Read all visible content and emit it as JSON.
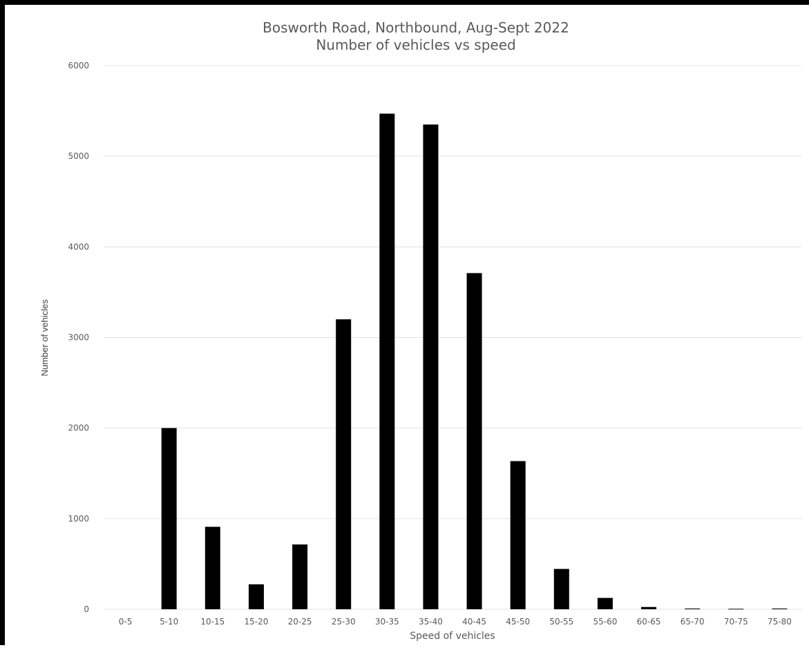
{
  "chart_data": {
    "type": "bar",
    "title_lines": [
      "Bosworth Road, Northbound, Aug-Sept 2022",
      "Number of vehicles vs speed"
    ],
    "xlabel": "Speed of vehicles",
    "ylabel": "Number of vehicles",
    "categories": [
      "0-5",
      "5-10",
      "10-15",
      "15-20",
      "20-25",
      "25-30",
      "30-35",
      "35-40",
      "40-45",
      "45-50",
      "50-55",
      "55-60",
      "60-65",
      "65-70",
      "70-75",
      "75-80"
    ],
    "values": [
      0,
      2000,
      910,
      275,
      715,
      3200,
      5470,
      5350,
      3710,
      1635,
      445,
      125,
      25,
      8,
      5,
      8
    ],
    "y_ticks": [
      "0",
      "1000",
      "2000",
      "3000",
      "4000",
      "5000",
      "6000"
    ],
    "ylim": [
      0,
      6000
    ],
    "grid": true,
    "legend": "none",
    "bar_color": "#000000"
  }
}
